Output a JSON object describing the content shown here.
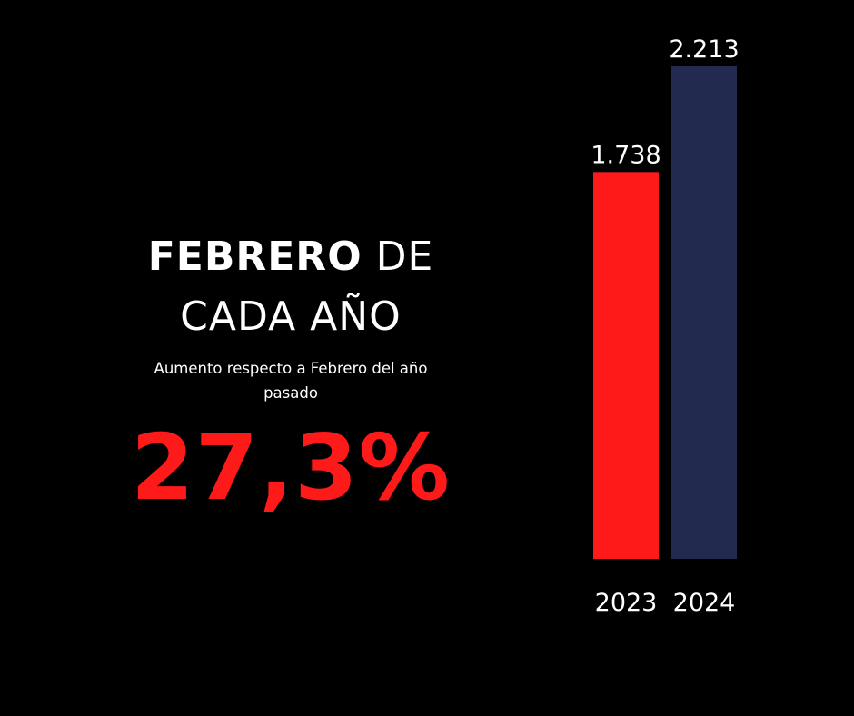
{
  "chart_data": {
    "type": "bar",
    "title_bold": "FEBRERO",
    "title_rest_line1": "DE",
    "title_line2": "CADA AÑO",
    "subtitle": "Aumento respecto a Febrero del año pasado",
    "highlight": "27,3%",
    "categories": [
      "2023",
      "2024"
    ],
    "values": [
      1738,
      2213
    ],
    "value_labels": [
      "1.738",
      "2.213"
    ],
    "colors": [
      "#ff1a1a",
      "#222a4f"
    ]
  }
}
